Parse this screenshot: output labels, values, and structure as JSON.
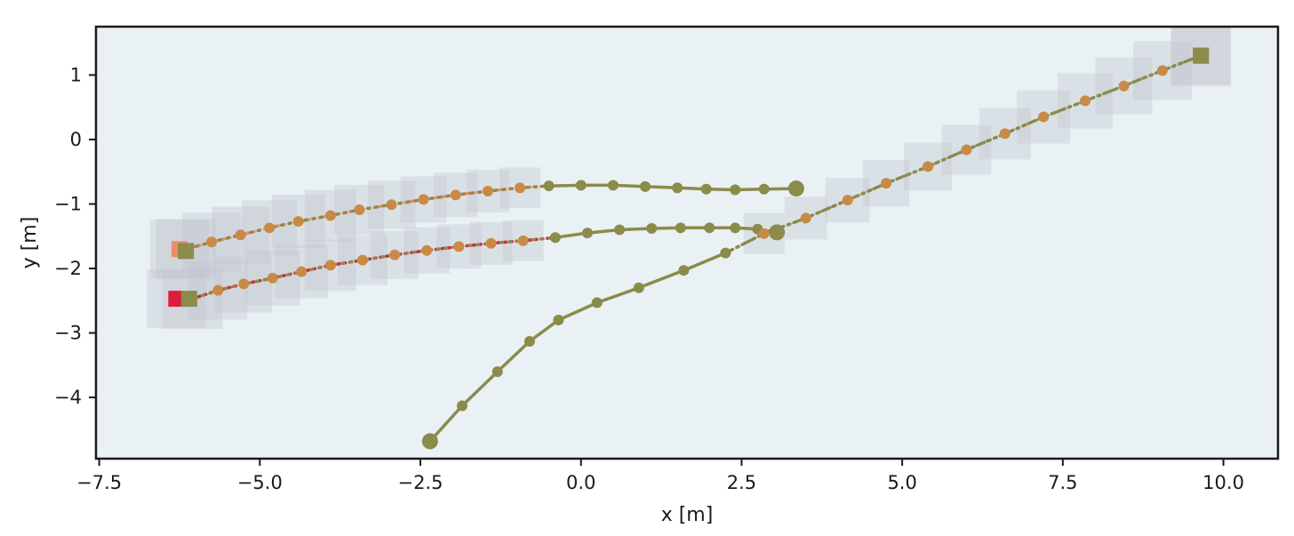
{
  "chart_data": {
    "type": "line",
    "title": "",
    "xlabel": "x [m]",
    "ylabel": "y [m]",
    "xlim": [
      -7.55,
      10.85
    ],
    "ylim": [
      -4.95,
      1.75
    ],
    "xticks": [
      -7.5,
      -5.0,
      -2.5,
      0.0,
      2.5,
      5.0,
      7.5,
      10.0
    ],
    "xtick_labels": [
      "−7.5",
      "−5.0",
      "−2.5",
      "0.0",
      "2.5",
      "5.0",
      "7.5",
      "10.0"
    ],
    "yticks": [
      1,
      0,
      -1,
      -2,
      -3,
      -4
    ],
    "ytick_labels": [
      "1",
      "0",
      "−1",
      "−2",
      "−3",
      "−4"
    ],
    "grid": false,
    "background_color": "#e9f1f4",
    "colors": {
      "history": "#8b8b4b",
      "prediction_dots": "#c98a48",
      "prediction_line_alt": "#ee8a6a",
      "goal_red": "#dc1e3c",
      "goal_orange": "#ee8a6a",
      "goal_olive": "#8b8b4b",
      "shadow": "#bfc3cb"
    },
    "agents": [
      {
        "history": [
          [
            3.35,
            -0.76
          ],
          [
            2.85,
            -0.77
          ],
          [
            2.4,
            -0.78
          ],
          [
            1.95,
            -0.77
          ],
          [
            1.5,
            -0.75
          ],
          [
            1.0,
            -0.73
          ],
          [
            0.5,
            -0.71
          ],
          [
            0.0,
            -0.71
          ],
          [
            -0.5,
            -0.72
          ]
        ],
        "prediction": [
          [
            -0.95,
            -0.75
          ],
          [
            -1.45,
            -0.8
          ],
          [
            -1.95,
            -0.86
          ],
          [
            -2.45,
            -0.93
          ],
          [
            -2.95,
            -1.01
          ],
          [
            -3.45,
            -1.09
          ],
          [
            -3.9,
            -1.18
          ],
          [
            -4.4,
            -1.27
          ],
          [
            -4.85,
            -1.37
          ],
          [
            -5.3,
            -1.48
          ],
          [
            -5.75,
            -1.59
          ],
          [
            -6.15,
            -1.7
          ]
        ],
        "goal_gt": [
          -6.25,
          -1.7
        ],
        "goal_pred": [
          -6.15,
          -1.73
        ],
        "goal_gt_color": "goal_orange",
        "pred_line_color": "prediction_line_alt"
      },
      {
        "history": [
          [
            3.05,
            -1.44
          ],
          [
            2.75,
            -1.39
          ],
          [
            2.4,
            -1.37
          ],
          [
            2.0,
            -1.37
          ],
          [
            1.55,
            -1.37
          ],
          [
            1.1,
            -1.38
          ],
          [
            0.6,
            -1.4
          ],
          [
            0.1,
            -1.45
          ],
          [
            -0.4,
            -1.52
          ]
        ],
        "prediction": [
          [
            -0.9,
            -1.57
          ],
          [
            -1.4,
            -1.61
          ],
          [
            -1.9,
            -1.66
          ],
          [
            -2.4,
            -1.72
          ],
          [
            -2.9,
            -1.79
          ],
          [
            -3.4,
            -1.87
          ],
          [
            -3.9,
            -1.95
          ],
          [
            -4.35,
            -2.05
          ],
          [
            -4.8,
            -2.15
          ],
          [
            -5.25,
            -2.24
          ],
          [
            -5.65,
            -2.34
          ],
          [
            -6.05,
            -2.47
          ]
        ],
        "goal_gt": [
          -6.3,
          -2.47
        ],
        "goal_pred": [
          -6.1,
          -2.47
        ],
        "goal_gt_color": "goal_red",
        "pred_line_color": "goal_red"
      },
      {
        "history": [
          [
            -2.35,
            -4.68
          ],
          [
            -1.85,
            -4.13
          ],
          [
            -1.3,
            -3.6
          ],
          [
            -0.8,
            -3.13
          ],
          [
            -0.35,
            -2.8
          ],
          [
            0.25,
            -2.53
          ],
          [
            0.9,
            -2.3
          ],
          [
            1.6,
            -2.03
          ],
          [
            2.25,
            -1.76
          ]
        ],
        "prediction": [
          [
            2.85,
            -1.46
          ],
          [
            3.5,
            -1.22
          ],
          [
            4.15,
            -0.94
          ],
          [
            4.75,
            -0.68
          ],
          [
            5.4,
            -0.42
          ],
          [
            6.0,
            -0.16
          ],
          [
            6.6,
            0.09
          ],
          [
            7.2,
            0.35
          ],
          [
            7.85,
            0.6
          ],
          [
            8.45,
            0.83
          ],
          [
            9.05,
            1.07
          ],
          [
            9.65,
            1.3
          ]
        ],
        "goal_gt": [
          9.65,
          1.3
        ],
        "goal_pred": [
          9.65,
          1.3
        ],
        "goal_gt_color": "goal_olive",
        "pred_line_color": "history"
      }
    ]
  }
}
